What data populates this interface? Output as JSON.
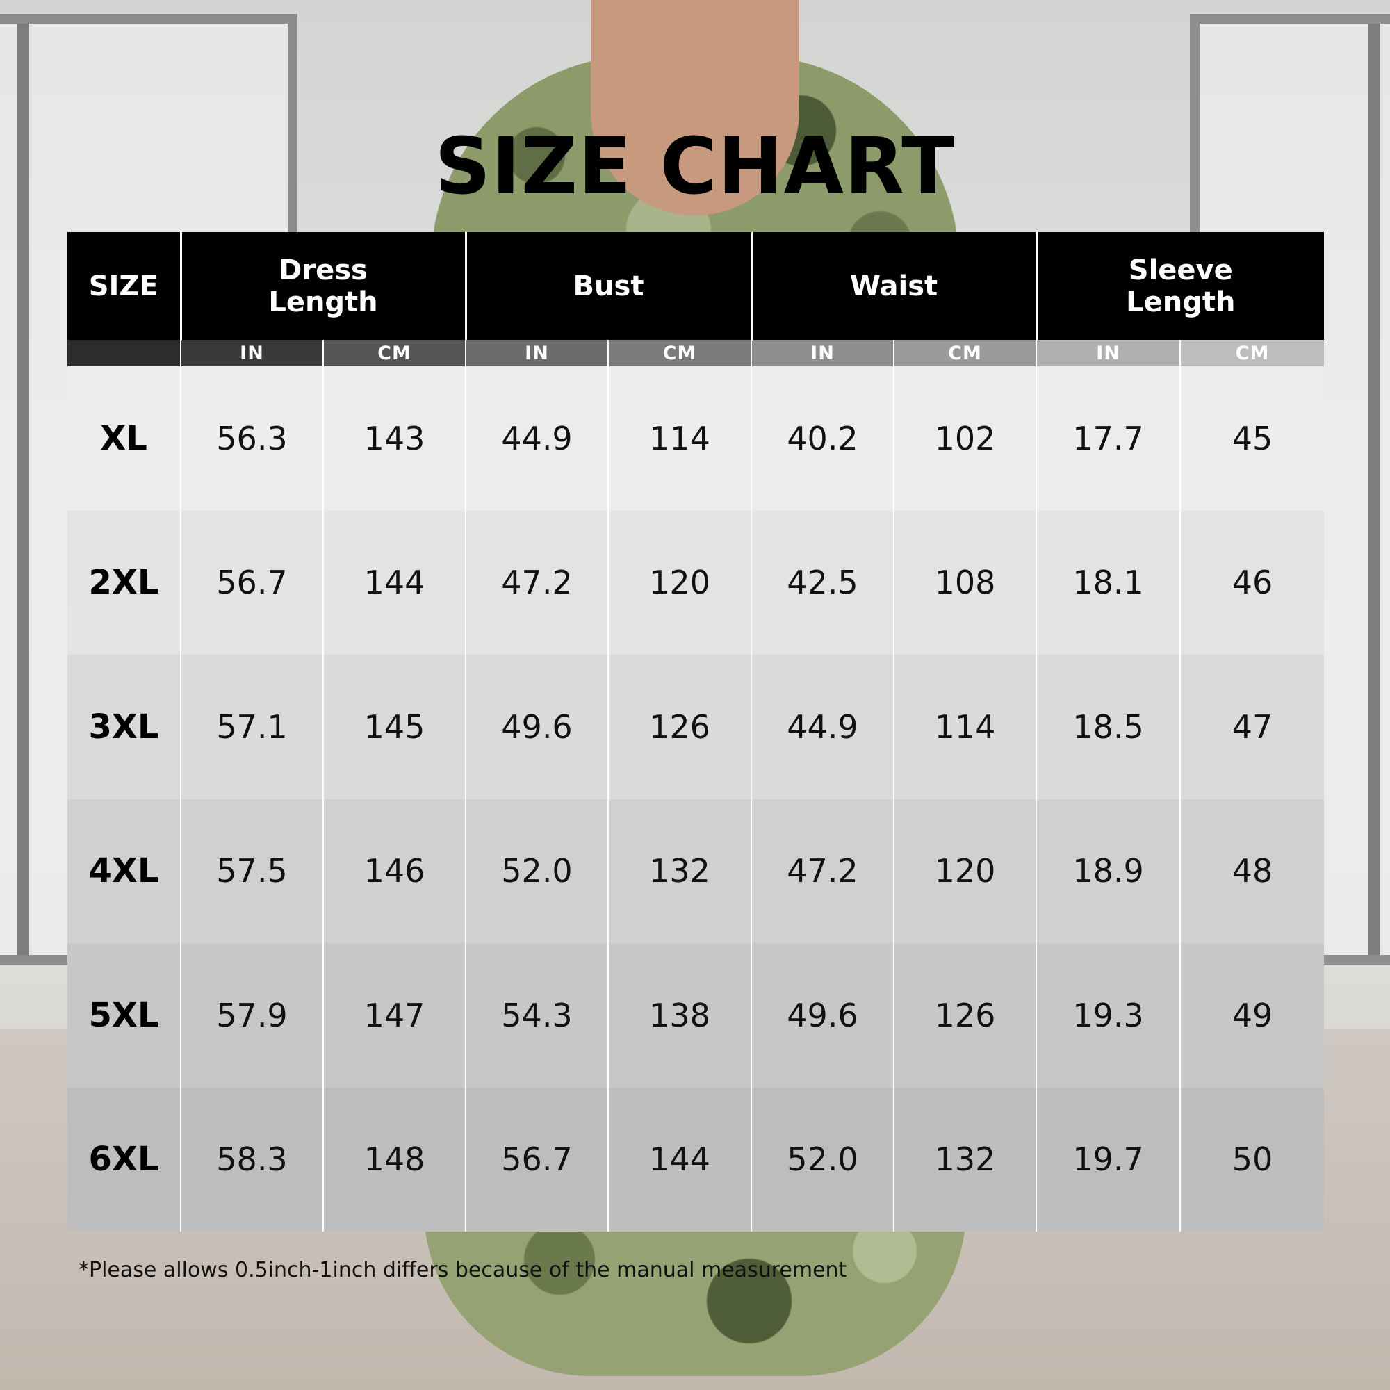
{
  "title": "SIZE CHART",
  "headers": [
    "SIZE",
    "Dress Length",
    "Bust",
    "Waist",
    "Sleeve Length"
  ],
  "units": [
    "IN",
    "CM",
    "IN",
    "CM",
    "IN",
    "CM",
    "IN",
    "CM"
  ],
  "unit_colors": [
    "#3a3a3a",
    "#555555",
    "#6b6b6b",
    "#7b7b7b",
    "#8e8e8e",
    "#9a9a9a",
    "#b0b0b0",
    "#bdbdbd"
  ],
  "rows": [
    {
      "size": "XL",
      "values": [
        "56.3",
        "143",
        "44.9",
        "114",
        "40.2",
        "102",
        "17.7",
        "45"
      ]
    },
    {
      "size": "2XL",
      "values": [
        "56.7",
        "144",
        "47.2",
        "120",
        "42.5",
        "108",
        "18.1",
        "46"
      ]
    },
    {
      "size": "3XL",
      "values": [
        "57.1",
        "145",
        "49.6",
        "126",
        "44.9",
        "114",
        "18.5",
        "47"
      ]
    },
    {
      "size": "4XL",
      "values": [
        "57.5",
        "146",
        "52.0",
        "132",
        "47.2",
        "120",
        "18.9",
        "48"
      ]
    },
    {
      "size": "5XL",
      "values": [
        "57.9",
        "147",
        "54.3",
        "138",
        "49.6",
        "126",
        "19.3",
        "49"
      ]
    },
    {
      "size": "6XL",
      "values": [
        "58.3",
        "148",
        "56.7",
        "144",
        "52.0",
        "132",
        "19.7",
        "50"
      ]
    }
  ],
  "row_colors": [
    "#ececec",
    "#e3e3e3",
    "#dadada",
    "#d0d0d0",
    "#c7c7c7",
    "#bdbdbd"
  ],
  "note": "*Please allows 0.5inch-1inch differs because of the manual measurement"
}
